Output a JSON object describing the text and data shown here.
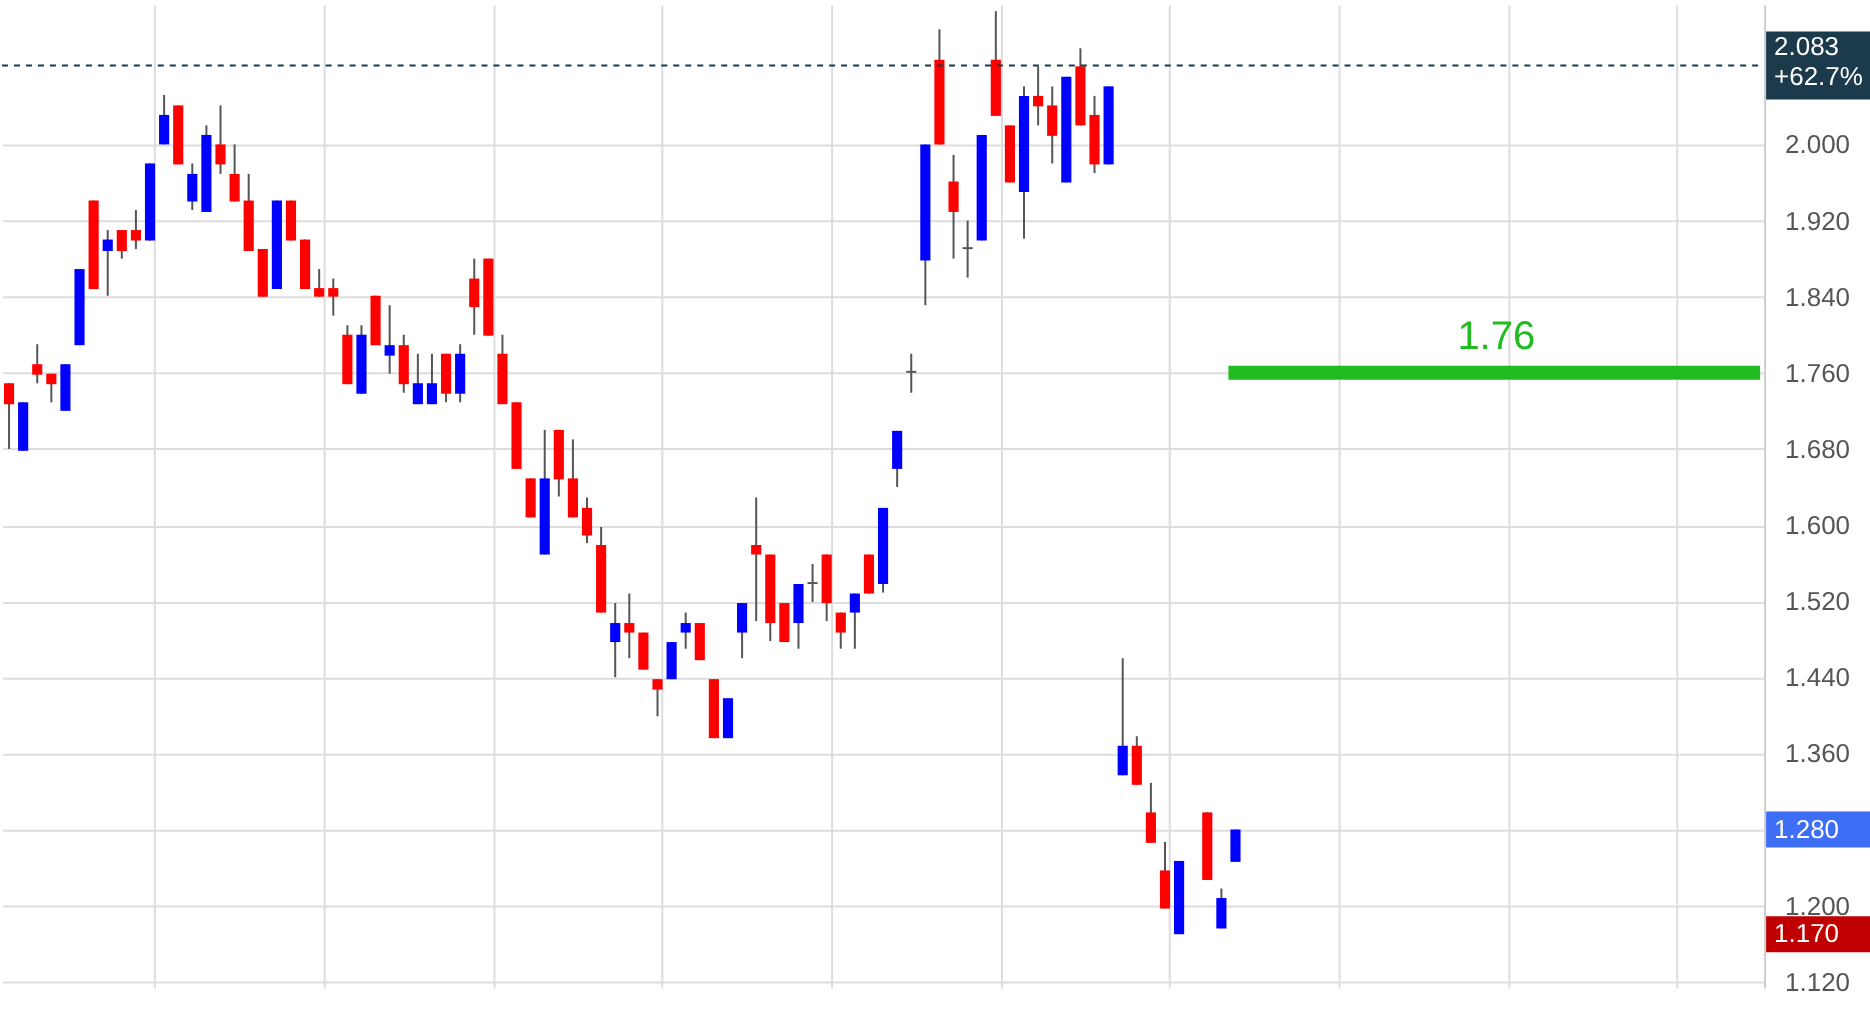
{
  "chart_data": {
    "type": "candlestick",
    "categories": [
      null,
      null,
      null,
      null,
      null,
      null,
      null,
      null,
      null,
      null,
      null,
      null,
      null,
      null,
      null,
      null,
      null,
      null,
      null,
      null,
      null,
      null,
      null,
      null,
      null,
      null,
      null,
      null,
      null,
      null,
      null,
      null,
      null,
      null,
      null,
      null,
      null,
      null,
      null,
      null,
      null,
      null,
      null,
      null,
      null,
      null,
      null,
      null,
      null,
      null,
      null,
      null,
      null,
      null,
      null,
      null,
      null,
      null,
      null,
      null,
      null,
      null,
      null,
      null,
      null,
      null,
      null,
      null,
      null,
      null,
      null,
      null,
      null,
      null,
      null,
      null,
      null,
      null,
      null,
      null,
      null,
      null,
      null,
      null,
      null,
      null,
      null,
      null,
      null,
      null,
      null,
      null,
      null,
      null,
      null,
      null,
      null,
      null,
      null,
      null,
      null,
      null,
      null,
      null,
      null,
      null,
      null,
      null,
      null,
      null,
      null,
      null,
      null,
      null,
      null,
      null,
      null,
      null,
      null,
      null,
      null,
      null,
      null,
      null,
      null
    ],
    "ohlc": [
      [
        1.749,
        1.749,
        1.68,
        1.727
      ],
      [
        1.678,
        1.729,
        1.678,
        1.729
      ],
      [
        1.769,
        1.79,
        1.749,
        1.758
      ],
      [
        1.759,
        1.759,
        1.729,
        1.748
      ],
      [
        1.72,
        1.769,
        1.72,
        1.769
      ],
      [
        1.789,
        1.869,
        1.789,
        1.869
      ],
      [
        1.941,
        1.941,
        1.848,
        1.848
      ],
      [
        1.888,
        1.91,
        1.841,
        1.9
      ],
      [
        1.91,
        1.91,
        1.88,
        1.888
      ],
      [
        1.91,
        1.931,
        1.89,
        1.899
      ],
      [
        1.899,
        1.98,
        1.899,
        1.98
      ],
      [
        2.0,
        2.052,
        2.0,
        2.031
      ],
      [
        2.041,
        2.041,
        1.979,
        1.979
      ],
      [
        1.94,
        1.98,
        1.931,
        1.969
      ],
      [
        1.929,
        2.02,
        1.929,
        2.01
      ],
      [
        2.0,
        2.041,
        1.969,
        1.979
      ],
      [
        1.969,
        2.0,
        1.94,
        1.94
      ],
      [
        1.941,
        1.969,
        1.888,
        1.888
      ],
      [
        1.89,
        1.89,
        1.84,
        1.84
      ],
      [
        1.848,
        1.941,
        1.848,
        1.941
      ],
      [
        1.941,
        1.941,
        1.899,
        1.899
      ],
      [
        1.9,
        1.9,
        1.848,
        1.848
      ],
      [
        1.849,
        1.869,
        1.84,
        1.84
      ],
      [
        1.849,
        1.859,
        1.82,
        1.84
      ],
      [
        1.8,
        1.81,
        1.748,
        1.748
      ],
      [
        1.738,
        1.81,
        1.738,
        1.8
      ],
      [
        1.841,
        1.841,
        1.789,
        1.789
      ],
      [
        1.778,
        1.831,
        1.759,
        1.789
      ],
      [
        1.789,
        1.8,
        1.739,
        1.748
      ],
      [
        1.727,
        1.78,
        1.727,
        1.749
      ],
      [
        1.727,
        1.78,
        1.727,
        1.749
      ],
      [
        1.78,
        1.78,
        1.729,
        1.738
      ],
      [
        1.738,
        1.79,
        1.729,
        1.78
      ],
      [
        1.859,
        1.88,
        1.8,
        1.829
      ],
      [
        1.88,
        1.88,
        1.799,
        1.799
      ],
      [
        1.78,
        1.8,
        1.727,
        1.727
      ],
      [
        1.729,
        1.729,
        1.659,
        1.659
      ],
      [
        1.649,
        1.649,
        1.608,
        1.608
      ],
      [
        1.569,
        1.7,
        1.569,
        1.649
      ],
      [
        1.7,
        1.7,
        1.63,
        1.648
      ],
      [
        1.649,
        1.69,
        1.608,
        1.608
      ],
      [
        1.618,
        1.629,
        1.581,
        1.589
      ],
      [
        1.579,
        1.598,
        1.508,
        1.508
      ],
      [
        1.477,
        1.518,
        1.44,
        1.497
      ],
      [
        1.497,
        1.528,
        1.46,
        1.487
      ],
      [
        1.487,
        1.487,
        1.448,
        1.448
      ],
      [
        1.438,
        1.438,
        1.399,
        1.427
      ],
      [
        1.438,
        1.477,
        1.438,
        1.477
      ],
      [
        1.487,
        1.508,
        1.47,
        1.497
      ],
      [
        1.497,
        1.497,
        1.458,
        1.458
      ],
      [
        1.438,
        1.438,
        1.376,
        1.376
      ],
      [
        1.376,
        1.418,
        1.376,
        1.418
      ],
      [
        1.487,
        1.518,
        1.46,
        1.518
      ],
      [
        1.579,
        1.629,
        1.499,
        1.569
      ],
      [
        1.569,
        1.569,
        1.478,
        1.497
      ],
      [
        1.518,
        1.518,
        1.477,
        1.477
      ],
      [
        1.497,
        1.538,
        1.47,
        1.538
      ],
      [
        1.538,
        1.559,
        1.519,
        1.54
      ],
      [
        1.569,
        1.569,
        1.499,
        1.518
      ],
      [
        1.508,
        1.508,
        1.47,
        1.487
      ],
      [
        1.508,
        1.528,
        1.47,
        1.528
      ],
      [
        1.569,
        1.569,
        1.528,
        1.528
      ],
      [
        1.538,
        1.618,
        1.529,
        1.618
      ],
      [
        1.659,
        1.699,
        1.64,
        1.699
      ],
      [
        1.76,
        1.78,
        1.739,
        1.762
      ],
      [
        1.878,
        2.0,
        1.831,
        2.0
      ],
      [
        2.089,
        2.121,
        2.0,
        2.0
      ],
      [
        1.961,
        1.989,
        1.88,
        1.929
      ],
      [
        1.89,
        1.92,
        1.86,
        1.892
      ],
      [
        1.899,
        2.01,
        1.899,
        2.01
      ],
      [
        2.089,
        2.14,
        2.03,
        2.03
      ],
      [
        2.02,
        2.02,
        1.96,
        1.96
      ],
      [
        1.95,
        2.061,
        1.901,
        2.051
      ],
      [
        2.051,
        2.082,
        2.02,
        2.04
      ],
      [
        2.041,
        2.061,
        1.98,
        2.009
      ],
      [
        1.96,
        2.071,
        1.96,
        2.071
      ],
      [
        2.082,
        2.101,
        2.02,
        2.02
      ],
      [
        2.031,
        2.051,
        1.97,
        1.979
      ],
      [
        1.979,
        2.061,
        1.979,
        2.061
      ],
      [
        1.337,
        1.46,
        1.337,
        1.368
      ],
      [
        1.368,
        1.378,
        1.327,
        1.327
      ],
      [
        1.298,
        1.329,
        1.266,
        1.266
      ],
      [
        1.237,
        1.267,
        1.197,
        1.197
      ],
      [
        1.17,
        1.247,
        1.17,
        1.247
      ],
      null,
      [
        1.298,
        1.298,
        1.227,
        1.227
      ],
      [
        1.176,
        1.218,
        1.176,
        1.208
      ],
      [
        1.246,
        1.28,
        1.246,
        1.28
      ],
      null,
      null,
      null,
      null,
      null,
      null,
      null,
      null,
      null,
      null,
      null,
      null,
      null,
      null,
      null,
      null,
      null,
      null,
      null,
      null,
      null,
      null,
      null,
      null,
      null,
      null,
      null,
      null,
      null,
      null,
      null,
      null,
      null,
      null,
      null,
      null,
      null
    ],
    "colors": [
      "#ff0000",
      "#0000ff",
      "#ff0000",
      "#ff0000",
      "#0000ff",
      "#0000ff",
      "#ff0000",
      "#0000ff",
      "#ff0000",
      "#ff0000",
      "#0000ff",
      "#0000ff",
      "#ff0000",
      "#0000ff",
      "#0000ff",
      "#ff0000",
      "#ff0000",
      "#ff0000",
      "#ff0000",
      "#0000ff",
      "#ff0000",
      "#ff0000",
      "#ff0000",
      "#ff0000",
      "#ff0000",
      "#0000ff",
      "#ff0000",
      "#0000ff",
      "#ff0000",
      "#0000ff",
      "#0000ff",
      "#ff0000",
      "#0000ff",
      "#ff0000",
      "#ff0000",
      "#ff0000",
      "#ff0000",
      "#ff0000",
      "#0000ff",
      "#ff0000",
      "#ff0000",
      "#ff0000",
      "#ff0000",
      "#0000ff",
      "#ff0000",
      "#ff0000",
      "#ff0000",
      "#0000ff",
      "#0000ff",
      "#ff0000",
      "#ff0000",
      "#0000ff",
      "#0000ff",
      "#ff0000",
      "#ff0000",
      "#ff0000",
      "#0000ff",
      "#555555",
      "#ff0000",
      "#ff0000",
      "#0000ff",
      "#ff0000",
      "#0000ff",
      "#0000ff",
      "#555555",
      "#0000ff",
      "#ff0000",
      "#ff0000",
      "#555555",
      "#0000ff",
      "#ff0000",
      "#ff0000",
      "#0000ff",
      "#ff0000",
      "#ff0000",
      "#0000ff",
      "#ff0000",
      "#ff0000",
      "#0000ff",
      "#0000ff",
      "#ff0000",
      "#ff0000",
      "#ff0000",
      "#0000ff",
      null,
      "#ff0000",
      "#0000ff",
      "#0000ff",
      null,
      null,
      null,
      null,
      null,
      null,
      null,
      null,
      null,
      null,
      null,
      null,
      null,
      null,
      null,
      null,
      null,
      null,
      null,
      null,
      null,
      null,
      null,
      null,
      null,
      null,
      null,
      null,
      null,
      null,
      null,
      null,
      null,
      null,
      null,
      null,
      null
    ],
    "ylim": [
      1.114,
      2.147
    ],
    "yticks": [
      {
        "value": 1.12,
        "label": "1.120"
      },
      {
        "value": 1.2,
        "label": "1.200"
      },
      {
        "value": 1.28,
        "label": null
      },
      {
        "value": 1.36,
        "label": "1.360"
      },
      {
        "value": 1.44,
        "label": "1.440"
      },
      {
        "value": 1.52,
        "label": "1.520"
      },
      {
        "value": 1.6,
        "label": "1.600"
      },
      {
        "value": 1.68,
        "label": "1.680"
      },
      {
        "value": 1.76,
        "label": "1.760"
      },
      {
        "value": 1.84,
        "label": "1.840"
      },
      {
        "value": 1.92,
        "label": "1.920"
      },
      {
        "value": 2.0,
        "label": "2.000"
      }
    ],
    "grid": true,
    "tick_labels": "y",
    "ref_lines": [
      {
        "axis": "y",
        "value": 2.083,
        "label": "2.083\n+62.7%",
        "color": "#1b3a4b",
        "line_style": "dashed"
      },
      {
        "axis": "y",
        "value": 1.76,
        "label": "1.76",
        "color": "#22bb22",
        "line_style": "solid"
      }
    ],
    "annotations": [
      "1.280",
      "1.170"
    ]
  }
}
